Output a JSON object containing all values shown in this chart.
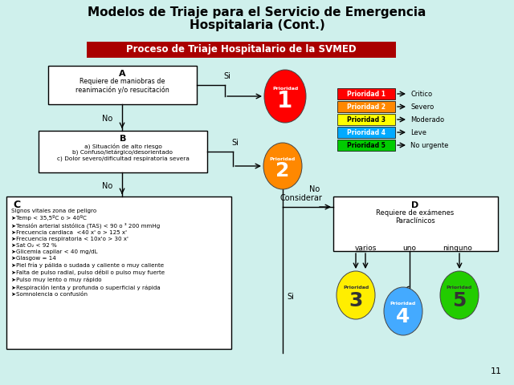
{
  "title_line1": "Modelos de Triaje para el Servicio de Emergencia",
  "title_line2": "Hospitalaria (Cont.)",
  "banner_text": "Proceso de Triaje Hospitalario de la SVMED",
  "banner_color": "#aa0000",
  "banner_text_color": "#ffffff",
  "bg_color": "#cff0ec",
  "priorities": [
    {
      "label": "Prioridad 1",
      "color": "#ff0000",
      "text_color": "#ffffff"
    },
    {
      "label": "Prioridad 2",
      "color": "#ff8800",
      "text_color": "#ffffff"
    },
    {
      "label": "Prioridad 3",
      "color": "#ffff00",
      "text_color": "#000000"
    },
    {
      "label": "Prioridad 4",
      "color": "#00aaff",
      "text_color": "#ffffff"
    },
    {
      "label": "Prioridad 5",
      "color": "#00cc00",
      "text_color": "#000000"
    }
  ],
  "priority_descriptions": [
    "Critico",
    "Severo",
    "Moderado",
    "Leve",
    "No urgente"
  ],
  "circle_colors": [
    "#ff0000",
    "#ff8800",
    "#ffee00",
    "#44aaff",
    "#22cc00"
  ],
  "page_number": "11"
}
